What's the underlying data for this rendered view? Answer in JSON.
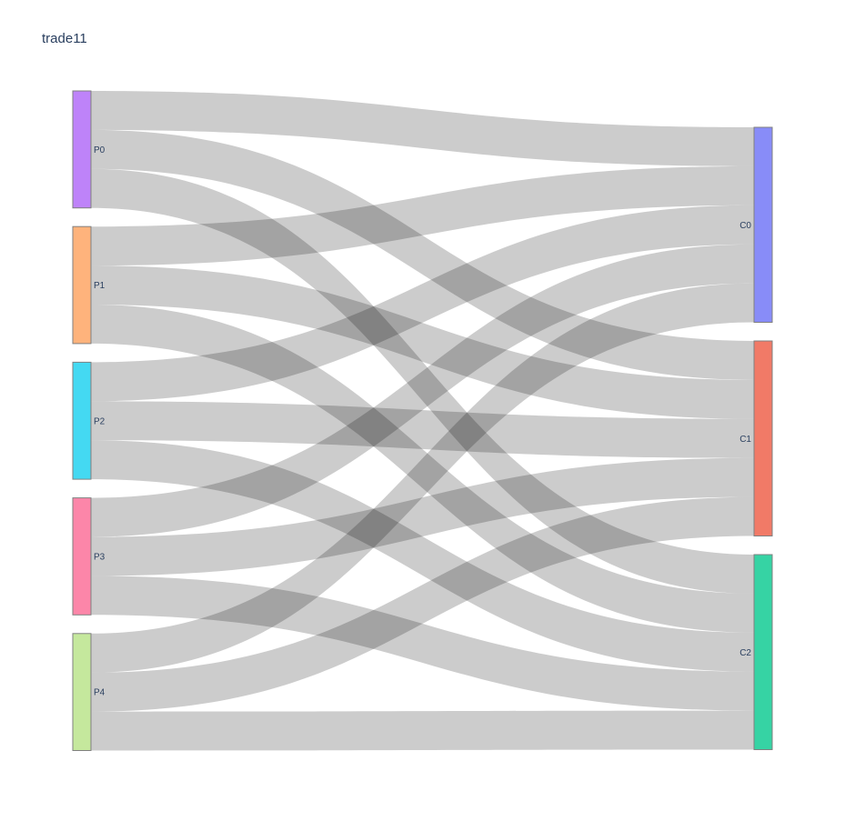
{
  "chart_data": {
    "type": "sankey",
    "title": "trade11",
    "nodes": [
      {
        "id": "P0",
        "label": "P0",
        "color": "#be83f9"
      },
      {
        "id": "P1",
        "label": "P1",
        "color": "#feb37c"
      },
      {
        "id": "P2",
        "label": "P2",
        "color": "#44d9f2"
      },
      {
        "id": "P3",
        "label": "P3",
        "color": "#fc86a9"
      },
      {
        "id": "P4",
        "label": "P4",
        "color": "#c5e89d"
      },
      {
        "id": "C0",
        "label": "C0",
        "color": "#888cf8"
      },
      {
        "id": "C1",
        "label": "C1",
        "color": "#f17a67"
      },
      {
        "id": "C2",
        "label": "C2",
        "color": "#36d3a4"
      }
    ],
    "links": [
      {
        "source": "P0",
        "target": "C0",
        "value": 1
      },
      {
        "source": "P0",
        "target": "C1",
        "value": 1
      },
      {
        "source": "P0",
        "target": "C2",
        "value": 1
      },
      {
        "source": "P1",
        "target": "C0",
        "value": 1
      },
      {
        "source": "P1",
        "target": "C1",
        "value": 1
      },
      {
        "source": "P1",
        "target": "C2",
        "value": 1
      },
      {
        "source": "P2",
        "target": "C0",
        "value": 1
      },
      {
        "source": "P2",
        "target": "C1",
        "value": 1
      },
      {
        "source": "P2",
        "target": "C2",
        "value": 1
      },
      {
        "source": "P3",
        "target": "C0",
        "value": 1
      },
      {
        "source": "P3",
        "target": "C1",
        "value": 1
      },
      {
        "source": "P3",
        "target": "C2",
        "value": 1
      },
      {
        "source": "P4",
        "target": "C0",
        "value": 1
      },
      {
        "source": "P4",
        "target": "C1",
        "value": 1
      },
      {
        "source": "P4",
        "target": "C2",
        "value": 1
      }
    ],
    "link_color": "rgba(0,0,0,0.2)",
    "node_outline_color": "#808080"
  }
}
